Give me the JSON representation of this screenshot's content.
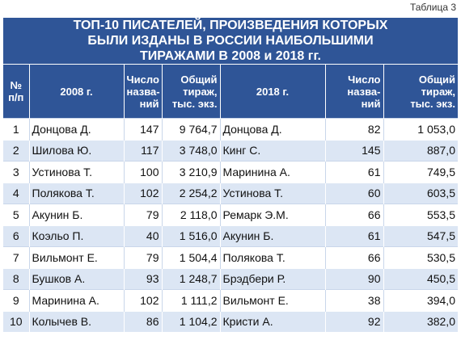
{
  "caption": "Таблица 3",
  "title": {
    "line1": "ТОП-10 ПИСАТЕЛЕЙ, ПРОИЗВЕДЕНИЯ КОТОРЫХ",
    "line2": "БЫЛИ ИЗДАНЫ В РОССИИ НАИБОЛЬШИМИ",
    "line3": "ТИРАЖАМИ В 2008 и 2018 гг."
  },
  "headers": {
    "num_line1": "№",
    "num_line2": "п/п",
    "year2008": "2008 г.",
    "titles_line1": "Число",
    "titles_line2": "назва-",
    "titles_line3": "ний",
    "circ_line1": "Общий",
    "circ_line2": "тираж,",
    "circ_line3": "тыс. экз.",
    "year2018": "2018 г."
  },
  "rows": [
    {
      "n": "1",
      "a2008": "Донцова Д.",
      "t2008": "147",
      "c2008": "9 764,7",
      "a2018": "Донцова Д.",
      "t2018": "82",
      "c2018": "1 053,0"
    },
    {
      "n": "2",
      "a2008": "Шилова Ю.",
      "t2008": "117",
      "c2008": "3 748,0",
      "a2018": "Кинг С.",
      "t2018": "145",
      "c2018": "887,0"
    },
    {
      "n": "3",
      "a2008": "Устинова Т.",
      "t2008": "100",
      "c2008": "3 210,9",
      "a2018": "Маринина А.",
      "t2018": "61",
      "c2018": "749,5"
    },
    {
      "n": "4",
      "a2008": "Полякова Т.",
      "t2008": "102",
      "c2008": "2 254,2",
      "a2018": "Устинова Т.",
      "t2018": "60",
      "c2018": "603,5"
    },
    {
      "n": "5",
      "a2008": "Акунин Б.",
      "t2008": "79",
      "c2008": "2 118,0",
      "a2018": "Ремарк Э.М.",
      "t2018": "66",
      "c2018": "553,5"
    },
    {
      "n": "6",
      "a2008": "Коэльо П.",
      "t2008": "40",
      "c2008": "1 516,0",
      "a2018": "Акунин Б.",
      "t2018": "61",
      "c2018": "547,5"
    },
    {
      "n": "7",
      "a2008": "Вильмонт Е.",
      "t2008": "79",
      "c2008": "1 504,4",
      "a2018": "Полякова Т.",
      "t2018": "66",
      "c2018": "530,5"
    },
    {
      "n": "8",
      "a2008": "Бушков А.",
      "t2008": "93",
      "c2008": "1 248,7",
      "a2018": "Брэдбери Р.",
      "t2018": "90",
      "c2018": "450,5"
    },
    {
      "n": "9",
      "a2008": "Маринина А.",
      "t2008": "102",
      "c2008": "1 111,2",
      "a2018": "Вильмонт Е.",
      "t2018": "38",
      "c2018": "394,0"
    },
    {
      "n": "10",
      "a2008": "Колычев В.",
      "t2008": "86",
      "c2008": "1 104,2",
      "a2018": "Кристи А.",
      "t2018": "92",
      "c2018": "382,0"
    }
  ]
}
